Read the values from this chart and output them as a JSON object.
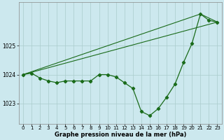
{
  "background_color": "#cce8ee",
  "grid_color": "#aacccc",
  "line_color": "#1a6b1a",
  "xlim": [
    -0.5,
    23.5
  ],
  "ylim": [
    1022.3,
    1026.5
  ],
  "yticks": [
    1023,
    1024,
    1025
  ],
  "xticks": [
    0,
    1,
    2,
    3,
    4,
    5,
    6,
    7,
    8,
    9,
    10,
    11,
    12,
    13,
    14,
    15,
    16,
    17,
    18,
    19,
    20,
    21,
    22,
    23
  ],
  "xlabel": "Graphe pression niveau de la mer (hPa)",
  "series_main": [
    1024.0,
    1024.05,
    1023.88,
    1023.78,
    1023.72,
    1023.78,
    1023.78,
    1023.78,
    1023.78,
    1024.0,
    1024.0,
    1023.92,
    1023.72,
    1023.52,
    1022.72,
    1022.58,
    1022.82,
    1023.22,
    1023.68,
    1024.42,
    1025.08,
    1026.1,
    1025.88,
    1025.82
  ],
  "line1_x": [
    0,
    21
  ],
  "line1_y": [
    1024.0,
    1026.1
  ],
  "line2_x": [
    0,
    23
  ],
  "line2_y": [
    1024.0,
    1025.82
  ],
  "line3_x": [
    21,
    23
  ],
  "line3_y": [
    1026.1,
    1025.82
  ]
}
